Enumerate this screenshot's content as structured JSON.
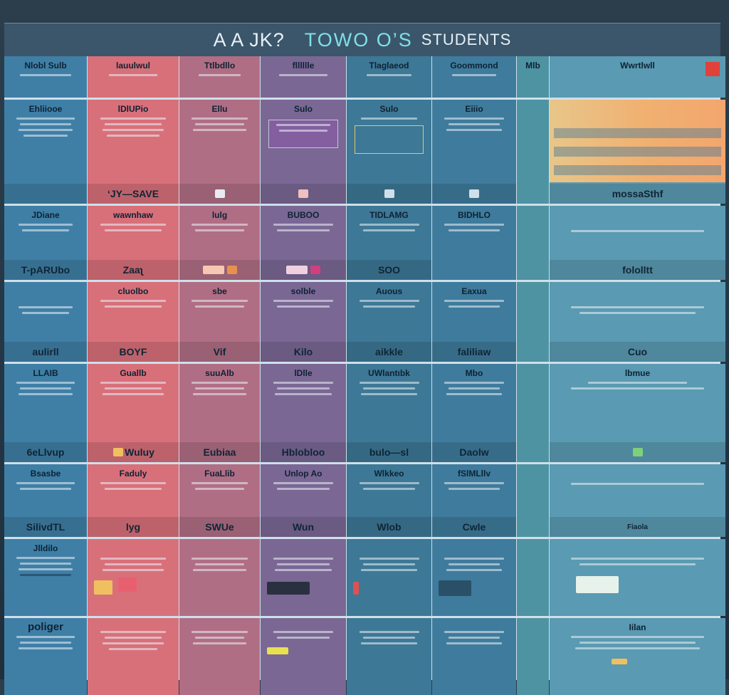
{
  "title": {
    "part1": "A A JK?",
    "part2": "TOWO O’S",
    "part3": "STUDENTS"
  },
  "colors": {
    "col0": "#3f7fa6",
    "col1": "#d8707a",
    "col2": "#b06e84",
    "col3": "#7a6794",
    "col4": "#3d7896",
    "col5": "#3f7b9c",
    "col6": "#4e93a2",
    "col7": "#5a9ab2",
    "accent_red": "#e0413a",
    "accent_orange": "#f0b070"
  },
  "rows": [
    {
      "row_label": "",
      "cells": [
        "",
        "",
        "",
        "",
        "",
        "",
        "",
        ""
      ]
    },
    {
      "row_label": "",
      "bands": [
        "",
        "ʻJY—SAVE",
        "",
        "",
        "",
        "",
        "",
        "mossaSthf"
      ]
    },
    {
      "row_label": "JDiane",
      "labels": [
        "JDiane",
        "wawnhaw",
        "lulg",
        "BUBOO",
        "TIDLAMG",
        "BIDHLO",
        "",
        ""
      ],
      "bands": [
        "T-pARUbo",
        "Zaaʅ",
        "",
        "",
        "SOO",
        "",
        "",
        "fololltt"
      ]
    },
    {
      "row_label": "",
      "labels": [
        "",
        "cluolbo",
        "sbe",
        "solble",
        "Auous",
        "Eaxua",
        "",
        ""
      ],
      "bands": [
        "aulirll",
        "BOYF",
        "Vif",
        "Kilo",
        "aikkle",
        "faliliaw",
        "",
        "Cuo"
      ]
    },
    {
      "row_label": "LLAIB",
      "labels": [
        "LLAIB",
        "Guallb",
        "suuAlb",
        "lDlle",
        "UWlantıbk",
        "Mbo",
        "",
        "lbmue"
      ],
      "bands": [
        "6eLlvup",
        "Wuluy",
        "Eubiaa",
        "Hblobloo",
        "bulo—sl",
        "Daolw",
        "",
        ""
      ]
    },
    {
      "row_label": "Bsasbe",
      "labels": [
        "Bsasbe",
        "Faduly",
        "FuaLlib",
        "Unlop Ao",
        "Wlkkeo",
        "fSlMLllv",
        "",
        ""
      ],
      "bands": [
        "SilivdTL",
        "lyg",
        "SWUe",
        "Wun",
        "Wlob",
        "Cwle",
        "",
        "Fiaola"
      ]
    },
    {
      "row_label": "Jlldilo",
      "labels": [
        "Jlldilo",
        "",
        "",
        "",
        "",
        "",
        "",
        ""
      ],
      "bands": [
        "",
        "",
        "",
        "",
        "",
        "",
        "",
        ""
      ]
    },
    {
      "row_label": "poliger",
      "labels": [
        "poliger",
        "",
        "",
        "",
        "",
        "",
        "",
        "Iilan"
      ],
      "bands": [
        "",
        "",
        "",
        "",
        "",
        "",
        "",
        ""
      ]
    }
  ],
  "header": {
    "cells": [
      "Nlobl Sulb",
      "lauulwul",
      "Ttlbdllo",
      "flllllle",
      "Tlaglaeod",
      "Goommond",
      "Mlb",
      "Wwrtlwll"
    ]
  },
  "row1_labels": [
    "Ehliiooe",
    "lDlUPio",
    "Ellu",
    "Sulo",
    "Sulo",
    "Eiiio",
    "",
    ""
  ]
}
